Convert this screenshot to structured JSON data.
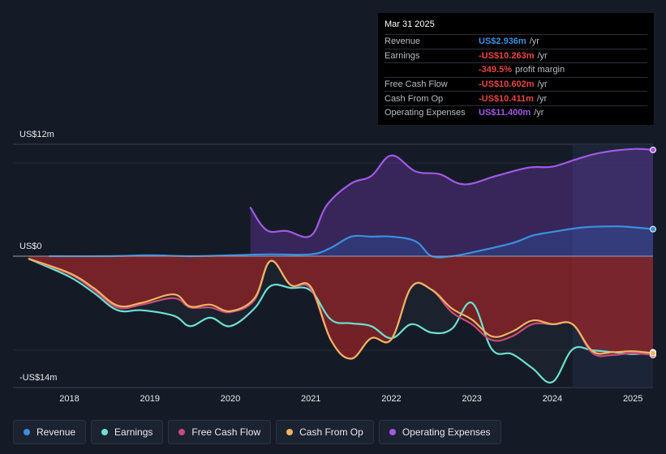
{
  "tooltip": {
    "date": "Mar 31 2025",
    "rows": [
      {
        "label": "Revenue",
        "value": "US$2.936m",
        "suffix": "/yr",
        "color": "#3b8fe0"
      },
      {
        "label": "Earnings",
        "value": "-US$10.263m",
        "suffix": "/yr",
        "color": "#e84545"
      },
      {
        "label": "",
        "value": "-349.5%",
        "suffix": "profit margin",
        "color": "#e84545"
      },
      {
        "label": "Free Cash Flow",
        "value": "-US$10.602m",
        "suffix": "/yr",
        "color": "#e84545"
      },
      {
        "label": "Cash From Op",
        "value": "-US$10.411m",
        "suffix": "/yr",
        "color": "#e84545"
      },
      {
        "label": "Operating Expenses",
        "value": "US$11.400m",
        "suffix": "/yr",
        "color": "#a259e6"
      }
    ]
  },
  "axis": {
    "y_top_label": "US$12m",
    "y_zero_label": "US$0",
    "y_bottom_label": "-US$14m"
  },
  "legend": [
    {
      "label": "Revenue",
      "color": "#3b8fe0"
    },
    {
      "label": "Earnings",
      "color": "#6de0d2"
    },
    {
      "label": "Free Cash Flow",
      "color": "#c84a7c"
    },
    {
      "label": "Cash From Op",
      "color": "#f0b460"
    },
    {
      "label": "Operating Expenses",
      "color": "#a259e6"
    }
  ],
  "chart_data": {
    "type": "line",
    "title": "",
    "xlabel": "",
    "ylabel": "US$",
    "ylim": [
      -14,
      12
    ],
    "xlim": [
      2017.3,
      2025.25
    ],
    "x_ticks": [
      2018,
      2019,
      2020,
      2021,
      2022,
      2023,
      2024,
      2025
    ],
    "x_tick_labels": [
      "2018",
      "2019",
      "2020",
      "2021",
      "2022",
      "2023",
      "2024",
      "2025"
    ],
    "series": [
      {
        "name": "Operating Expenses",
        "color": "#a259e6",
        "x": [
          2020.25,
          2020.45,
          2020.7,
          2021.0,
          2021.2,
          2021.5,
          2021.75,
          2022.0,
          2022.3,
          2022.6,
          2022.9,
          2023.3,
          2023.7,
          2024.0,
          2024.3,
          2024.6,
          2025.0,
          2025.25
        ],
        "y": [
          5.2,
          2.8,
          2.7,
          2.2,
          5.5,
          7.8,
          8.6,
          10.8,
          9.1,
          8.8,
          7.7,
          8.6,
          9.5,
          9.6,
          10.4,
          11.1,
          11.5,
          11.4
        ]
      },
      {
        "name": "Revenue",
        "color": "#3b8fe0",
        "x": [
          2017.75,
          2018.5,
          2019.0,
          2019.5,
          2020.0,
          2020.5,
          2021.0,
          2021.25,
          2021.5,
          2021.75,
          2022.0,
          2022.3,
          2022.5,
          2022.75,
          2023.0,
          2023.5,
          2023.75,
          2024.0,
          2024.4,
          2024.8,
          2025.0,
          2025.25
        ],
        "y": [
          0.0,
          0.0,
          0.1,
          0.0,
          0.1,
          0.2,
          0.2,
          0.9,
          2.1,
          2.1,
          2.1,
          1.6,
          0.0,
          0.0,
          0.4,
          1.4,
          2.2,
          2.6,
          3.1,
          3.2,
          3.1,
          2.9
        ]
      },
      {
        "name": "Earnings",
        "color": "#6de0d2",
        "x": [
          2017.5,
          2018.0,
          2018.3,
          2018.6,
          2018.9,
          2019.3,
          2019.5,
          2019.75,
          2020.0,
          2020.3,
          2020.5,
          2020.75,
          2021.0,
          2021.25,
          2021.5,
          2021.75,
          2022.0,
          2022.25,
          2022.5,
          2022.75,
          2023.0,
          2023.25,
          2023.5,
          2023.75,
          2024.0,
          2024.25,
          2024.5,
          2024.75,
          2025.0,
          2025.25
        ],
        "y": [
          -0.3,
          -2.2,
          -3.9,
          -5.8,
          -5.8,
          -6.4,
          -7.5,
          -6.6,
          -7.5,
          -5.6,
          -3.2,
          -3.4,
          -3.7,
          -6.8,
          -7.2,
          -7.5,
          -8.8,
          -7.3,
          -8.2,
          -7.8,
          -5.0,
          -10.0,
          -10.5,
          -12.0,
          -13.5,
          -10.0,
          -10.1,
          -10.3,
          -10.5,
          -10.3
        ]
      },
      {
        "name": "Free Cash Flow",
        "color": "#c84a7c",
        "x": [
          2017.5,
          2018.0,
          2018.3,
          2018.6,
          2018.9,
          2019.3,
          2019.5,
          2019.75,
          2020.0,
          2020.3,
          2020.5,
          2020.75,
          2021.0,
          2021.25,
          2021.5,
          2021.75,
          2022.0,
          2022.25,
          2022.5,
          2022.75,
          2023.0,
          2023.25,
          2023.5,
          2023.75,
          2024.0,
          2024.25,
          2024.5,
          2024.75,
          2025.0,
          2025.25
        ],
        "y": [
          -0.3,
          -1.9,
          -3.6,
          -5.5,
          -5.2,
          -4.5,
          -5.5,
          -5.5,
          -6.0,
          -4.7,
          -0.5,
          -3.1,
          -3.5,
          -9.0,
          -11.0,
          -8.8,
          -8.9,
          -3.3,
          -3.6,
          -6.0,
          -7.3,
          -9.0,
          -8.6,
          -7.3,
          -7.3,
          -7.3,
          -10.4,
          -10.6,
          -10.4,
          -10.6
        ]
      },
      {
        "name": "Cash From Op",
        "color": "#f0b460",
        "x": [
          2017.5,
          2018.0,
          2018.3,
          2018.6,
          2018.9,
          2019.3,
          2019.5,
          2019.75,
          2020.0,
          2020.3,
          2020.5,
          2020.75,
          2021.0,
          2021.25,
          2021.5,
          2021.75,
          2022.0,
          2022.25,
          2022.5,
          2022.75,
          2023.0,
          2023.25,
          2023.5,
          2023.75,
          2024.0,
          2024.25,
          2024.5,
          2024.75,
          2025.0,
          2025.25
        ],
        "y": [
          -0.3,
          -1.8,
          -3.4,
          -5.3,
          -5.0,
          -4.1,
          -5.4,
          -5.2,
          -5.9,
          -4.5,
          -0.5,
          -3.1,
          -3.3,
          -9.0,
          -11.0,
          -8.8,
          -8.9,
          -3.3,
          -3.6,
          -5.6,
          -6.8,
          -8.6,
          -8.1,
          -6.9,
          -7.3,
          -7.3,
          -10.2,
          -10.3,
          -10.2,
          -10.4
        ]
      }
    ],
    "forecast_region_start": 2024.25
  }
}
